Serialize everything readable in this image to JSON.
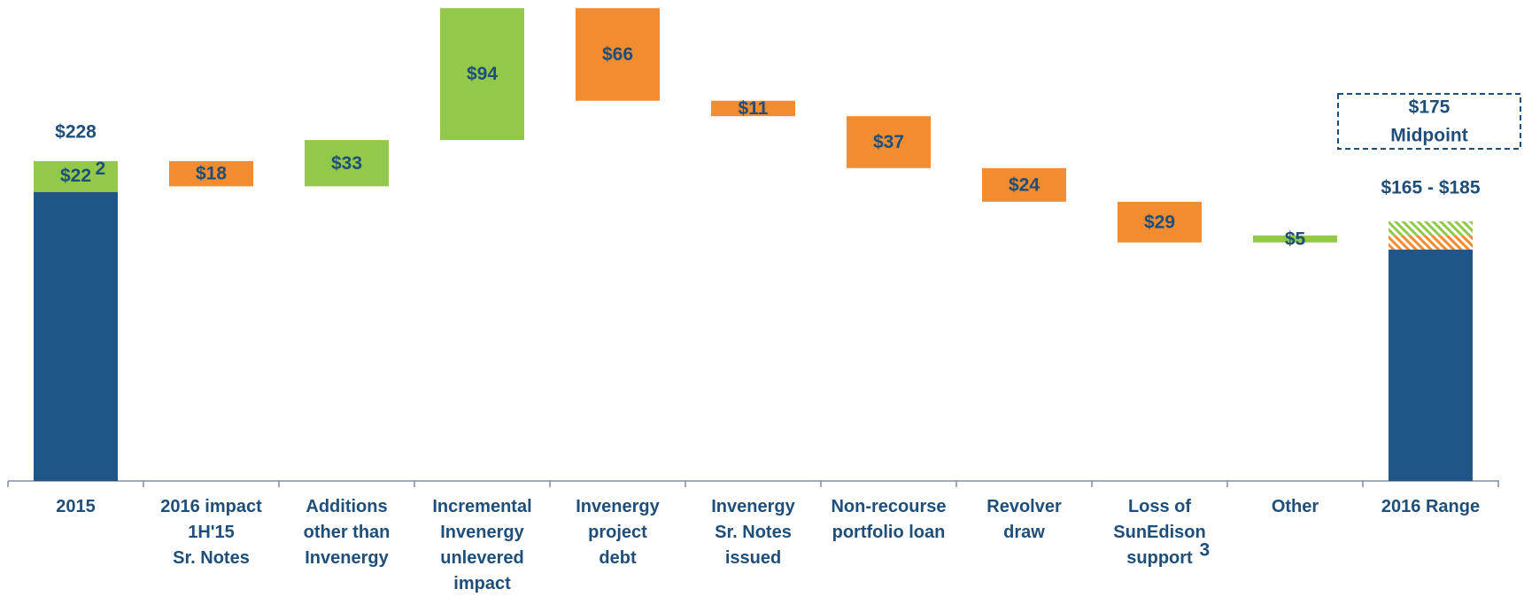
{
  "chart_data": {
    "type": "waterfall",
    "categories": [
      "2015",
      "2016 impact\n1H'15\nSr. Notes",
      "Additions\nother than\nInvenergy",
      "Incremental\nInvenergy\nunlevered\nimpact",
      "Invenergy\nproject\ndebt",
      "Invenergy\nSr. Notes\nissued",
      "Non-recourse\nportfolio loan",
      "Revolver\ndraw",
      "Loss of\nSunEdison\nsupport",
      "Other",
      "2016 Range"
    ],
    "start": {
      "base": 206,
      "addition": 22,
      "addition_label": "$22",
      "total": 228,
      "total_label": "$228"
    },
    "steps": {
      "values": [
        -18,
        33,
        94,
        -66,
        -11,
        -37,
        -24,
        -29,
        5
      ],
      "value_labels": [
        "$18",
        "$33",
        "$94",
        "$66",
        "$11",
        "$37",
        "$24",
        "$29",
        "$5"
      ]
    },
    "end": {
      "range": [
        165,
        185
      ],
      "range_label": "$165 - $185",
      "midpoint": 175,
      "midpoint_label": "$175",
      "midpoint_text": "Midpoint"
    },
    "annotations": [
      {
        "text": "2"
      },
      {
        "text": "3"
      }
    ],
    "colors": {
      "total": "#1f5587",
      "increase": "#92c94b",
      "decrease": "#f28c30"
    }
  }
}
